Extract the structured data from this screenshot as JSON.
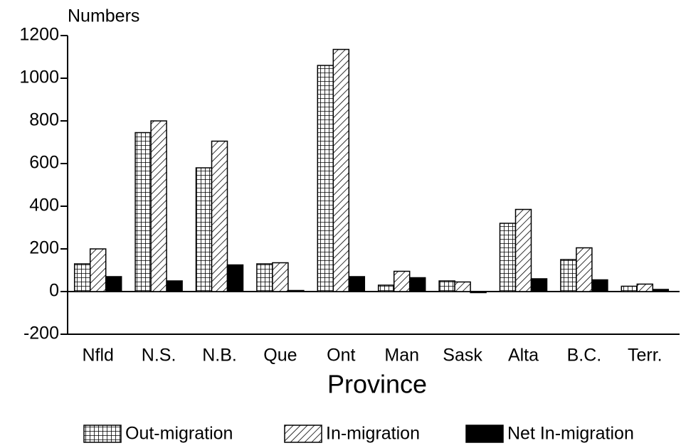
{
  "chart_data": {
    "type": "bar",
    "y_axis_label": "Numbers",
    "x_axis_label": "Province",
    "categories": [
      "Nfld",
      "N.S.",
      "N.B.",
      "Que",
      "Ont",
      "Man",
      "Sask",
      "Alta",
      "B.C.",
      "Terr."
    ],
    "series": [
      {
        "name": "Out-migration",
        "color": "#000000",
        "pattern": "grid",
        "values": [
          130,
          745,
          580,
          130,
          1060,
          30,
          50,
          320,
          150,
          25
        ]
      },
      {
        "name": "In-migration",
        "color": "#000000",
        "pattern": "hatch",
        "values": [
          200,
          800,
          705,
          135,
          1135,
          95,
          45,
          385,
          205,
          35
        ]
      },
      {
        "name": "Net In-migration",
        "color": "#000000",
        "pattern": "solid",
        "values": [
          70,
          50,
          125,
          5,
          70,
          65,
          -5,
          60,
          55,
          10
        ]
      }
    ],
    "ylim": [
      -200,
      1200
    ],
    "yticks": [
      -200,
      0,
      200,
      400,
      600,
      800,
      1000,
      1200
    ],
    "legend": "bottom"
  }
}
